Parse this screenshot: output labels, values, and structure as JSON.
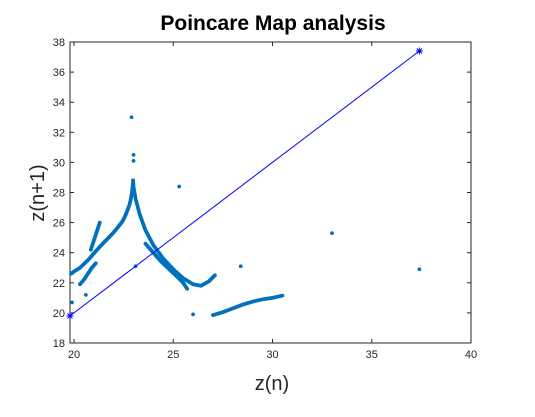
{
  "chart_data": {
    "type": "scatter",
    "title": "Poincare Map analysis",
    "xlabel": "z(n)",
    "ylabel": "z(n+1)",
    "xlim": [
      19.8,
      40
    ],
    "ylim": [
      18,
      38
    ],
    "xticks": [
      20,
      25,
      30,
      35,
      40
    ],
    "yticks": [
      18,
      20,
      22,
      24,
      26,
      28,
      30,
      32,
      34,
      36,
      38
    ],
    "grid": false,
    "series": [
      {
        "kind": "scatter",
        "color": "#0072BD",
        "marker": "dot",
        "segments": [
          {
            "x": [
              19.85,
              20.0,
              20.3,
              20.7,
              21.1,
              21.45,
              21.75,
              22.0,
              22.25,
              22.45,
              22.6,
              22.72,
              22.8,
              22.86,
              22.9,
              22.93,
              22.95,
              22.97,
              22.98
            ],
            "y": [
              22.6,
              22.75,
              23.0,
              23.5,
              24.1,
              24.6,
              25.0,
              25.35,
              25.75,
              26.1,
              26.5,
              26.9,
              27.2,
              27.55,
              27.85,
              28.1,
              28.35,
              28.6,
              28.8
            ]
          },
          {
            "x": [
              22.98,
              23.0,
              23.1,
              23.3,
              23.6,
              24.0,
              24.5,
              25.0,
              25.5,
              26.0,
              26.4,
              26.8,
              27.1
            ],
            "y": [
              28.8,
              28.4,
              27.6,
              26.6,
              25.5,
              24.5,
              23.6,
              22.9,
              22.3,
              21.9,
              21.8,
              22.1,
              22.5
            ]
          },
          {
            "x": [
              20.3,
              20.5,
              20.7,
              20.9,
              21.1
            ],
            "y": [
              21.9,
              22.2,
              22.6,
              23.0,
              23.3
            ]
          },
          {
            "x": [
              20.85,
              21.0,
              21.15,
              21.3
            ],
            "y": [
              24.2,
              24.8,
              25.4,
              26.0
            ]
          },
          {
            "x": [
              23.6,
              24.0,
              24.4,
              24.8,
              25.2,
              25.5,
              25.7
            ],
            "y": [
              24.6,
              24.0,
              23.4,
              22.9,
              22.4,
              22.0,
              21.6
            ]
          },
          {
            "x": [
              27.0,
              27.5,
              28.0,
              28.5,
              29.0,
              29.5,
              30.0,
              30.5
            ],
            "y": [
              19.85,
              20.05,
              20.3,
              20.55,
              20.75,
              20.9,
              21.0,
              21.15
            ]
          }
        ],
        "points": [
          {
            "x": 22.9,
            "y": 33.0
          },
          {
            "x": 23.0,
            "y": 30.5
          },
          {
            "x": 23.0,
            "y": 30.1
          },
          {
            "x": 25.3,
            "y": 28.4
          },
          {
            "x": 33.0,
            "y": 25.3
          },
          {
            "x": 28.4,
            "y": 23.1
          },
          {
            "x": 37.4,
            "y": 22.9
          },
          {
            "x": 23.1,
            "y": 23.1
          },
          {
            "x": 19.9,
            "y": 20.7
          },
          {
            "x": 20.6,
            "y": 21.2
          },
          {
            "x": 26.0,
            "y": 19.9
          }
        ]
      },
      {
        "kind": "line",
        "color": "#0000FF",
        "marker": "asterisk",
        "x": [
          19.8,
          37.4
        ],
        "y": [
          19.8,
          37.4
        ]
      }
    ]
  }
}
